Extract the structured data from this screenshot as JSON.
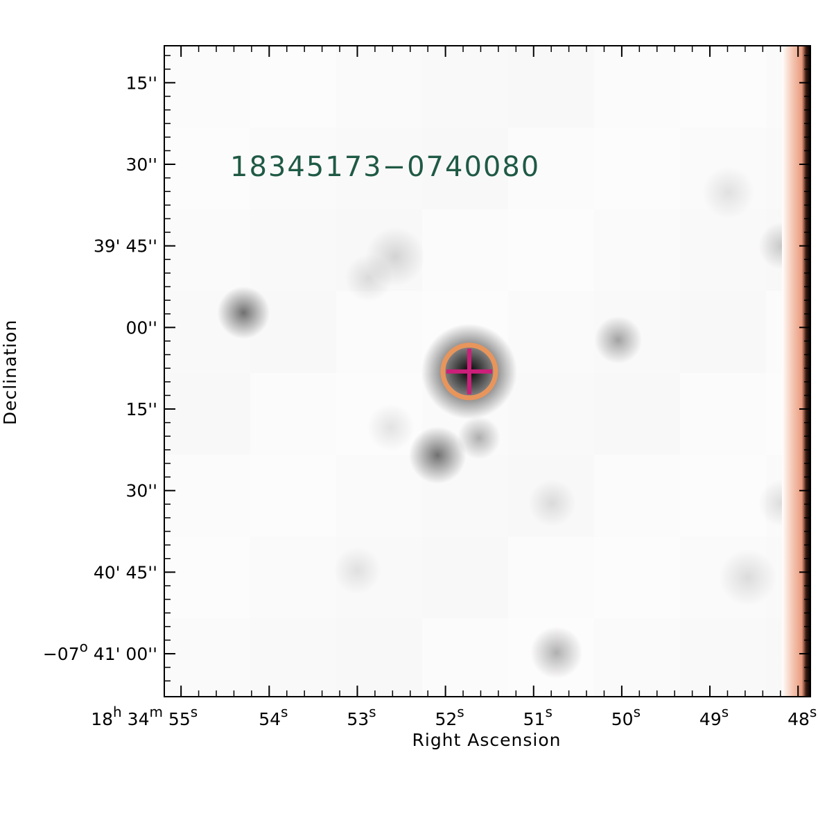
{
  "chart_data": {
    "type": "sky-image",
    "object_label": "18345173−0740080",
    "xlabel": "Right Ascension",
    "ylabel": "Declination",
    "ra_ticks": [
      {
        "ra_sec": 55,
        "label": "18h 34m 55s",
        "parts": [
          [
            "18",
            "h"
          ],
          [
            "34",
            "m"
          ],
          [
            "55",
            "s"
          ]
        ]
      },
      {
        "ra_sec": 54,
        "label": "54s",
        "parts": [
          [
            "54",
            "s"
          ]
        ]
      },
      {
        "ra_sec": 53,
        "label": "53s",
        "parts": [
          [
            "53",
            "s"
          ]
        ]
      },
      {
        "ra_sec": 52,
        "label": "52s",
        "parts": [
          [
            "52",
            "s"
          ]
        ]
      },
      {
        "ra_sec": 51,
        "label": "51s",
        "parts": [
          [
            "51",
            "s"
          ]
        ]
      },
      {
        "ra_sec": 50,
        "label": "50s",
        "parts": [
          [
            "50",
            "s"
          ]
        ]
      },
      {
        "ra_sec": 49,
        "label": "49s",
        "parts": [
          [
            "49",
            "s"
          ]
        ]
      },
      {
        "ra_sec": 48,
        "label": "48s",
        "parts": [
          [
            "48",
            "s"
          ]
        ]
      }
    ],
    "ra_range_sec": [
      55.19,
      47.86
    ],
    "dec_ticks": [
      {
        "dec_arcsec": 15,
        "label": "15''"
      },
      {
        "dec_arcsec": 30,
        "label": "30''"
      },
      {
        "dec_arcsec": 45,
        "label": "39' 45''"
      },
      {
        "dec_arcsec": 60,
        "label": "00''"
      },
      {
        "dec_arcsec": 75,
        "label": "15''"
      },
      {
        "dec_arcsec": 90,
        "label": "30''"
      },
      {
        "dec_arcsec": 105,
        "label": "40' 45''"
      },
      {
        "dec_arcsec": 120,
        "label": "−07° 41' 00''",
        "parts": [
          [
            "−07",
            "o"
          ],
          [
            " 41' 00''",
            ""
          ]
        ]
      }
    ],
    "dec_range_arcsec": [
      8.2,
      127.9
    ],
    "target": {
      "ra_sec": 51.73,
      "dec_arcsec": 68.1
    },
    "sources": [
      {
        "ra_sec": 51.73,
        "dec_arcsec": 68.1,
        "flux": 1.0,
        "size": 4.0
      },
      {
        "ra_sec": 54.29,
        "dec_arcsec": 57.3,
        "flux": 0.55,
        "size": 2.2
      },
      {
        "ra_sec": 52.09,
        "dec_arcsec": 83.5,
        "flux": 0.55,
        "size": 2.4
      },
      {
        "ra_sec": 51.62,
        "dec_arcsec": 80.3,
        "flux": 0.3,
        "size": 1.8
      },
      {
        "ra_sec": 50.04,
        "dec_arcsec": 62.3,
        "flux": 0.35,
        "size": 2.0
      },
      {
        "ra_sec": 50.74,
        "dec_arcsec": 119.8,
        "flux": 0.3,
        "size": 2.2
      },
      {
        "ra_sec": 52.57,
        "dec_arcsec": 47.0,
        "flux": 0.15,
        "size": 2.5
      },
      {
        "ra_sec": 52.87,
        "dec_arcsec": 50.9,
        "flux": 0.12,
        "size": 2.0
      },
      {
        "ra_sec": 48.18,
        "dec_arcsec": 45.0,
        "flux": 0.2,
        "size": 2.0
      },
      {
        "ra_sec": 48.79,
        "dec_arcsec": 35.2,
        "flux": 0.1,
        "size": 2.2
      },
      {
        "ra_sec": 50.79,
        "dec_arcsec": 92.3,
        "flux": 0.12,
        "size": 2.0
      },
      {
        "ra_sec": 48.18,
        "dec_arcsec": 92.3,
        "flux": 0.12,
        "size": 2.0
      },
      {
        "ra_sec": 53.0,
        "dec_arcsec": 104.7,
        "flux": 0.1,
        "size": 2.0
      },
      {
        "ra_sec": 48.57,
        "dec_arcsec": 106.0,
        "flux": 0.12,
        "size": 2.4
      },
      {
        "ra_sec": 52.62,
        "dec_arcsec": 78.4,
        "flux": 0.1,
        "size": 2.0
      }
    ],
    "grid": false,
    "colors": {
      "source_label": "#1f5a45",
      "circle": "#e8955c",
      "cross": "#cc1f7a",
      "edge_strip": "#f2b8a0",
      "edge_dark": "#000000",
      "axes": "#000000"
    }
  }
}
